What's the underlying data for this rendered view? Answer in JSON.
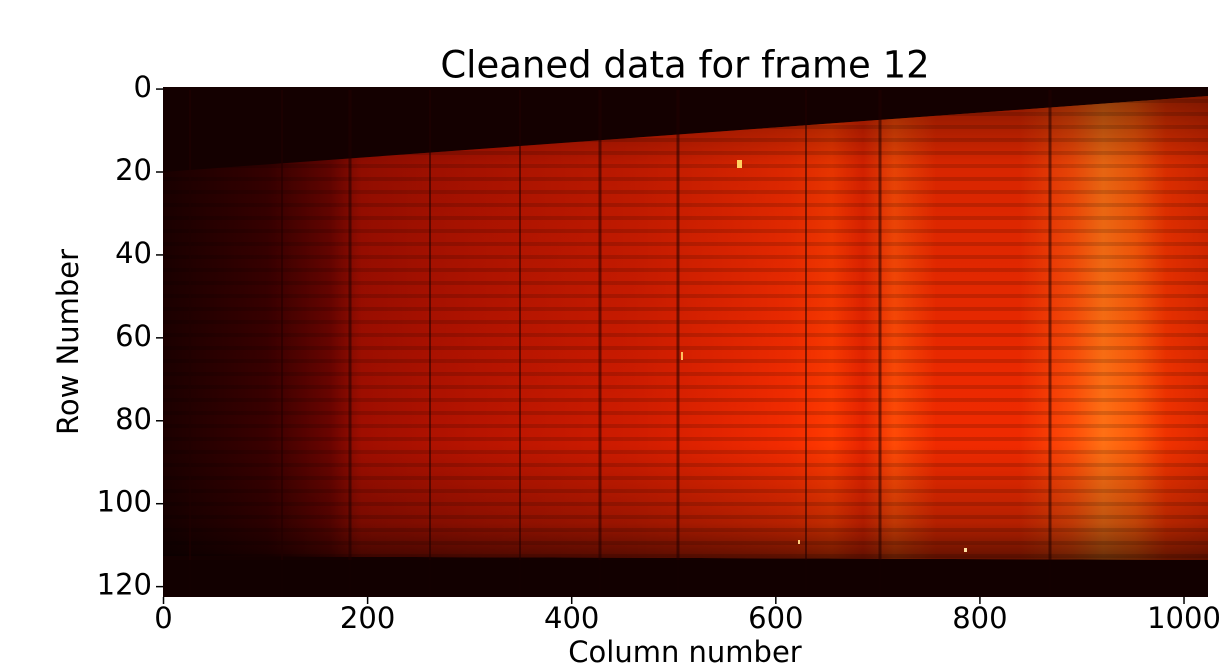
{
  "chart_data": {
    "type": "heatmap",
    "title": "Cleaned data for frame 12",
    "x_label": "Column number",
    "y_label": "Row Number",
    "xlim": [
      -0.5,
      1023.5
    ],
    "ylim": [
      122.5,
      -0.5
    ],
    "xticks": [
      0,
      200,
      400,
      600,
      800,
      1000
    ],
    "yticks": [
      0,
      20,
      40,
      60,
      80,
      100,
      120
    ]
  }
}
